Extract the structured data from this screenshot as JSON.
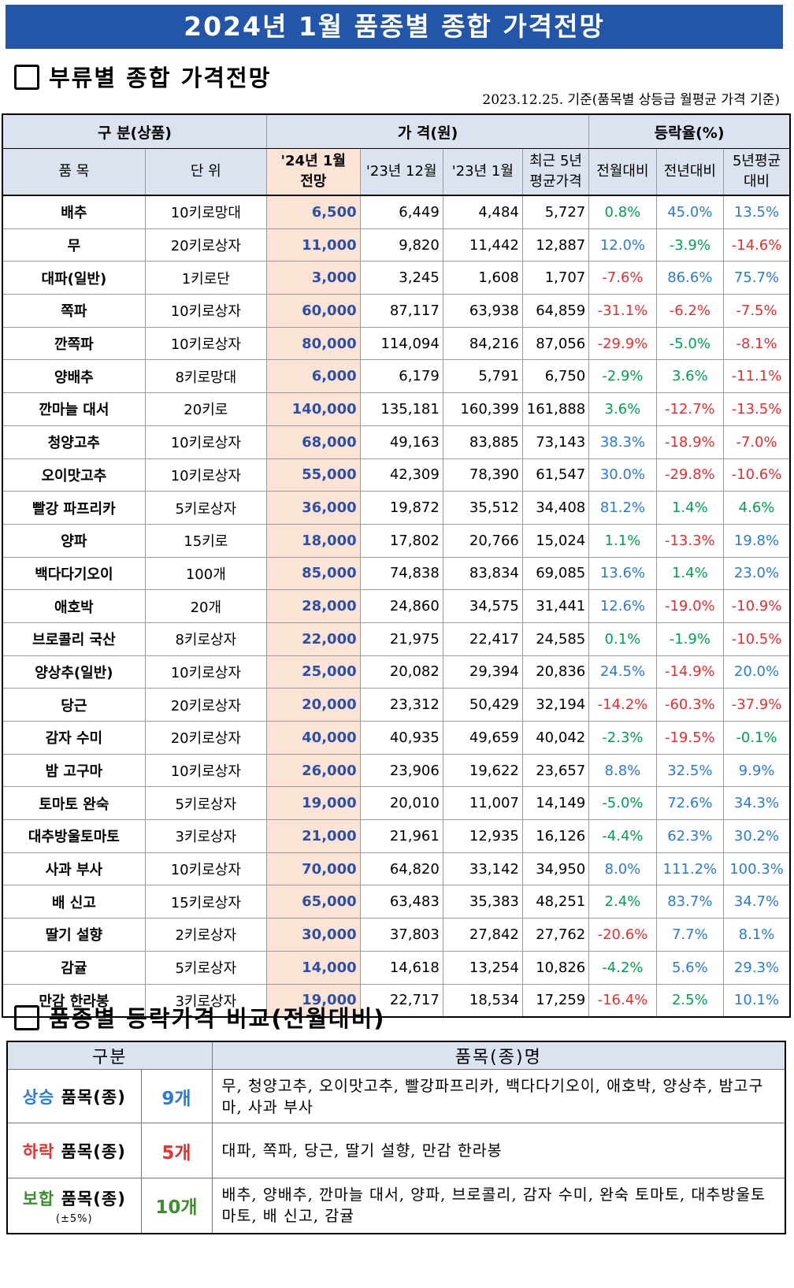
{
  "banner": "2024년 1월 품종별 종합 가격전망",
  "section1_title": "부류별 종합 가격전망",
  "basis_note": "2023.12.25. 기준(품목별 상등급 월평균 가격 기준)",
  "headers": {
    "group_category": "구 분(상품)",
    "group_price": "가  격(원)",
    "group_change": "등락율(%)",
    "item": "품 목",
    "unit": "단 위",
    "forecast_l1": "'24년 1월",
    "forecast_l2": "전망",
    "dec23": "'23년 12월",
    "jan23": "'23년 1월",
    "avg5y_l1": "최근 5년",
    "avg5y_l2": "평균가격",
    "mom": "전월대비",
    "yoy": "전년대비",
    "vs5y_l1": "5년평균",
    "vs5y_l2": "대비"
  },
  "colors": {
    "up": "#2a7bd8",
    "down": "#e53030",
    "flat": "#00a050",
    "banner": "#2356a8",
    "forecast_bg": "#fbe4d5"
  },
  "rows": [
    {
      "item": "배추",
      "unit": "10키로망대",
      "forecast": "6,500",
      "dec23": "6,449",
      "jan23": "4,484",
      "avg5y": "5,727",
      "mom": "0.8%",
      "yoy": "45.0%",
      "vs5y": "13.5%"
    },
    {
      "item": "무",
      "unit": "20키로상자",
      "forecast": "11,000",
      "dec23": "9,820",
      "jan23": "11,442",
      "avg5y": "12,887",
      "mom": "12.0%",
      "yoy": "-3.9%",
      "vs5y": "-14.6%"
    },
    {
      "item": "대파(일반)",
      "unit": "1키로단",
      "forecast": "3,000",
      "dec23": "3,245",
      "jan23": "1,608",
      "avg5y": "1,707",
      "mom": "-7.6%",
      "yoy": "86.6%",
      "vs5y": "75.7%"
    },
    {
      "item": "쪽파",
      "unit": "10키로상자",
      "forecast": "60,000",
      "dec23": "87,117",
      "jan23": "63,938",
      "avg5y": "64,859",
      "mom": "-31.1%",
      "yoy": "-6.2%",
      "vs5y": "-7.5%"
    },
    {
      "item": "깐쪽파",
      "unit": "10키로상자",
      "forecast": "80,000",
      "dec23": "114,094",
      "jan23": "84,216",
      "avg5y": "87,056",
      "mom": "-29.9%",
      "yoy": "-5.0%",
      "vs5y": "-8.1%"
    },
    {
      "item": "양배추",
      "unit": "8키로망대",
      "forecast": "6,000",
      "dec23": "6,179",
      "jan23": "5,791",
      "avg5y": "6,750",
      "mom": "-2.9%",
      "yoy": "3.6%",
      "vs5y": "-11.1%"
    },
    {
      "item": "깐마늘 대서",
      "unit": "20키로",
      "forecast": "140,000",
      "dec23": "135,181",
      "jan23": "160,399",
      "avg5y": "161,888",
      "mom": "3.6%",
      "yoy": "-12.7%",
      "vs5y": "-13.5%"
    },
    {
      "item": "청양고추",
      "unit": "10키로상자",
      "forecast": "68,000",
      "dec23": "49,163",
      "jan23": "83,885",
      "avg5y": "73,143",
      "mom": "38.3%",
      "yoy": "-18.9%",
      "vs5y": "-7.0%"
    },
    {
      "item": "오이맛고추",
      "unit": "10키로상자",
      "forecast": "55,000",
      "dec23": "42,309",
      "jan23": "78,390",
      "avg5y": "61,547",
      "mom": "30.0%",
      "yoy": "-29.8%",
      "vs5y": "-10.6%"
    },
    {
      "item": "빨강 파프리카",
      "unit": "5키로상자",
      "forecast": "36,000",
      "dec23": "19,872",
      "jan23": "35,512",
      "avg5y": "34,408",
      "mom": "81.2%",
      "yoy": "1.4%",
      "vs5y": "4.6%"
    },
    {
      "item": "양파",
      "unit": "15키로",
      "forecast": "18,000",
      "dec23": "17,802",
      "jan23": "20,766",
      "avg5y": "15,024",
      "mom": "1.1%",
      "yoy": "-13.3%",
      "vs5y": "19.8%"
    },
    {
      "item": "백다다기오이",
      "unit": "100개",
      "forecast": "85,000",
      "dec23": "74,838",
      "jan23": "83,834",
      "avg5y": "69,085",
      "mom": "13.6%",
      "yoy": "1.4%",
      "vs5y": "23.0%"
    },
    {
      "item": "애호박",
      "unit": "20개",
      "forecast": "28,000",
      "dec23": "24,860",
      "jan23": "34,575",
      "avg5y": "31,441",
      "mom": "12.6%",
      "yoy": "-19.0%",
      "vs5y": "-10.9%"
    },
    {
      "item": "브로콜리 국산",
      "unit": "8키로상자",
      "forecast": "22,000",
      "dec23": "21,975",
      "jan23": "22,417",
      "avg5y": "24,585",
      "mom": "0.1%",
      "yoy": "-1.9%",
      "vs5y": "-10.5%"
    },
    {
      "item": "양상추(일반)",
      "unit": "10키로상자",
      "forecast": "25,000",
      "dec23": "20,082",
      "jan23": "29,394",
      "avg5y": "20,836",
      "mom": "24.5%",
      "yoy": "-14.9%",
      "vs5y": "20.0%"
    },
    {
      "item": "당근",
      "unit": "20키로상자",
      "forecast": "20,000",
      "dec23": "23,312",
      "jan23": "50,429",
      "avg5y": "32,194",
      "mom": "-14.2%",
      "yoy": "-60.3%",
      "vs5y": "-37.9%"
    },
    {
      "item": "감자 수미",
      "unit": "20키로상자",
      "forecast": "40,000",
      "dec23": "40,935",
      "jan23": "49,659",
      "avg5y": "40,042",
      "mom": "-2.3%",
      "yoy": "-19.5%",
      "vs5y": "-0.1%"
    },
    {
      "item": "밤 고구마",
      "unit": "10키로상자",
      "forecast": "26,000",
      "dec23": "23,906",
      "jan23": "19,622",
      "avg5y": "23,657",
      "mom": "8.8%",
      "yoy": "32.5%",
      "vs5y": "9.9%"
    },
    {
      "item": "토마토 완숙",
      "unit": "5키로상자",
      "forecast": "19,000",
      "dec23": "20,010",
      "jan23": "11,007",
      "avg5y": "14,149",
      "mom": "-5.0%",
      "yoy": "72.6%",
      "vs5y": "34.3%"
    },
    {
      "item": "대추방울토마토",
      "unit": "3키로상자",
      "forecast": "21,000",
      "dec23": "21,961",
      "jan23": "12,935",
      "avg5y": "16,126",
      "mom": "-4.4%",
      "yoy": "62.3%",
      "vs5y": "30.2%"
    },
    {
      "item": "사과 부사",
      "unit": "10키로상자",
      "forecast": "70,000",
      "dec23": "64,820",
      "jan23": "33,142",
      "avg5y": "34,950",
      "mom": "8.0%",
      "yoy": "111.2%",
      "vs5y": "100.3%"
    },
    {
      "item": "배 신고",
      "unit": "15키로상자",
      "forecast": "65,000",
      "dec23": "63,483",
      "jan23": "35,383",
      "avg5y": "48,251",
      "mom": "2.4%",
      "yoy": "83.7%",
      "vs5y": "34.7%"
    },
    {
      "item": "딸기 설향",
      "unit": "2키로상자",
      "forecast": "30,000",
      "dec23": "37,803",
      "jan23": "27,842",
      "avg5y": "27,762",
      "mom": "-20.6%",
      "yoy": "7.7%",
      "vs5y": "8.1%"
    },
    {
      "item": "감귤",
      "unit": "5키로상자",
      "forecast": "14,000",
      "dec23": "14,618",
      "jan23": "13,254",
      "avg5y": "10,826",
      "mom": "-4.2%",
      "yoy": "5.6%",
      "vs5y": "29.3%"
    },
    {
      "item": "만감 한라봉",
      "unit": "3키로상자",
      "forecast": "19,000",
      "dec23": "22,717",
      "jan23": "18,534",
      "avg5y": "17,259",
      "mom": "-16.4%",
      "yoy": "2.5%",
      "vs5y": "10.1%"
    }
  ],
  "section2_title": "품종별 등락가격 비교(전월대비)",
  "comparison": {
    "header_category": "구분",
    "header_items": "품목(종)명",
    "rows": [
      {
        "keyword": "상승",
        "label": " 품목(종)",
        "count": "9개",
        "note": "",
        "items": "무, 청양고추, 오이맛고추, 빨강파프리카, 백다다기오이, 애호박, 양상추, 밤고구마, 사과 부사",
        "color": "#2a7bd8"
      },
      {
        "keyword": "하락",
        "label": " 품목(종)",
        "count": "5개",
        "note": "",
        "items": "대파, 쪽파, 당근, 딸기 설향, 만감 한라봉",
        "color": "#e53030"
      },
      {
        "keyword": "보합",
        "label": " 품목(종)",
        "count": "10개",
        "note": "(±5%)",
        "items": "배추, 양배추, 깐마늘 대서, 양파, 브로콜리, 감자 수미, 완숙 토마토, 대추방울토마토, 배 신고, 감귤",
        "color": "#3d8f2e"
      }
    ]
  }
}
